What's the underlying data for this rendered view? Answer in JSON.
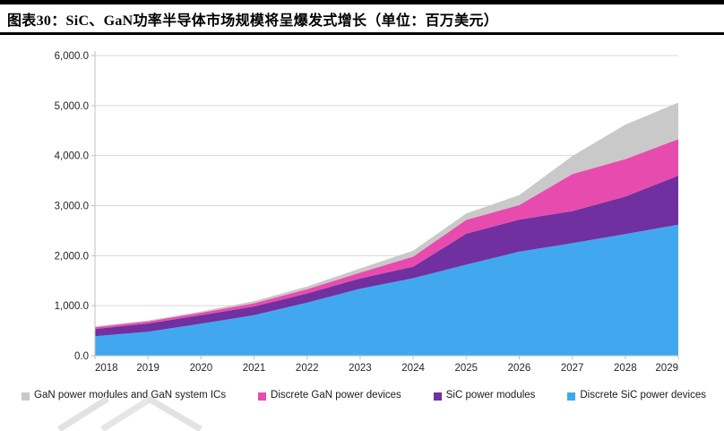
{
  "header": {
    "figure_label": "图表30"
  },
  "chart_data": {
    "type": "area",
    "stacked": true,
    "title": "图表30：SiC、GaN功率半导体市场规模将呈爆发式增长（单位：百万美元）",
    "unit": "百万美元",
    "categories": [
      "2018",
      "2019",
      "2020",
      "2021",
      "2022",
      "2023",
      "2024",
      "2025",
      "2026",
      "2027",
      "2028",
      "2029"
    ],
    "series": [
      {
        "name": "Discrete SiC power devices",
        "color": "#41A8F0",
        "values": [
          390,
          480,
          640,
          810,
          1060,
          1340,
          1550,
          1820,
          2080,
          2250,
          2430,
          2620
        ]
      },
      {
        "name": "SiC power modules",
        "color": "#7030A0",
        "values": [
          145,
          165,
          170,
          175,
          185,
          205,
          230,
          620,
          640,
          640,
          750,
          980
        ]
      },
      {
        "name": "Discrete GaN power devices",
        "color": "#E84BAE",
        "values": [
          35,
          40,
          50,
          65,
          85,
          115,
          200,
          275,
          290,
          740,
          750,
          730
        ]
      },
      {
        "name": "GaN power modules and GaN system ICs",
        "color": "#C9C9C9",
        "values": [
          20,
          20,
          25,
          40,
          55,
          85,
          120,
          130,
          200,
          360,
          690,
          730
        ]
      }
    ],
    "ylim": [
      0,
      6000
    ],
    "ytick_step": 1000,
    "ytick_labels": [
      "0.0",
      "1,000.0",
      "2,000.0",
      "3,000.0",
      "4,000.0",
      "5,000.0",
      "6,000.0"
    ],
    "grid": true,
    "legend_position": "bottom",
    "legend_order_note": "legend shown top-of-stack first",
    "axis_color": "#BFBFBF",
    "gridline_color": "#D9D9D9",
    "tick_label_color": "#262626"
  }
}
